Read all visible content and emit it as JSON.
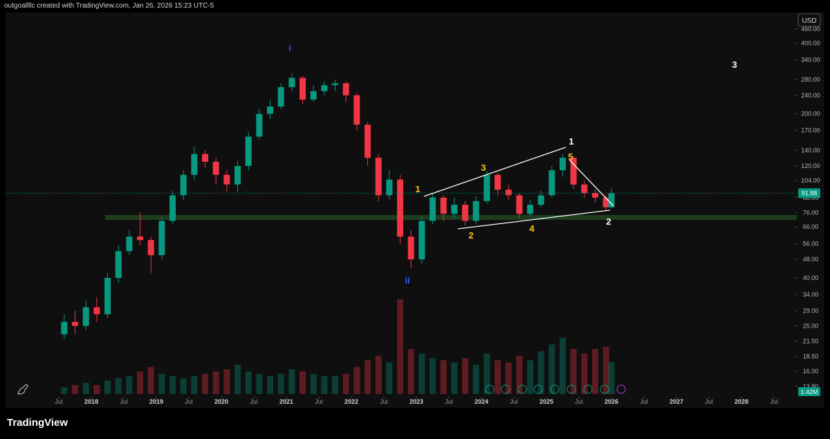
{
  "header": {
    "text": "outgoallllc created with TradingView.com, Jan 26, 2026 15:23 UTC-5"
  },
  "brand": "TradingView",
  "currency": "USD",
  "chart_data": {
    "type": "candlestick",
    "log_scale": true,
    "up_color": "#089981",
    "down_color": "#f23645",
    "x": [
      "2017-08",
      "2017-10",
      "2017-12",
      "2018-02",
      "2018-04",
      "2018-06",
      "2018-08",
      "2018-10",
      "2018-12",
      "2019-02",
      "2019-04",
      "2019-06",
      "2019-08",
      "2019-10",
      "2019-12",
      "2020-02",
      "2020-04",
      "2020-06",
      "2020-08",
      "2020-10",
      "2020-12",
      "2021-02",
      "2021-04",
      "2021-06",
      "2021-08",
      "2021-10",
      "2021-12",
      "2022-02",
      "2022-04",
      "2022-06",
      "2022-08",
      "2022-10",
      "2022-12",
      "2023-02",
      "2023-04",
      "2023-06",
      "2023-08",
      "2023-10",
      "2023-12",
      "2024-02",
      "2024-04",
      "2024-06",
      "2024-08",
      "2024-10",
      "2024-12",
      "2025-02",
      "2025-04",
      "2025-06",
      "2025-08",
      "2025-10",
      "2025-12",
      "2026-01"
    ],
    "open": [
      23,
      26,
      25,
      30,
      28,
      40,
      52,
      60,
      58,
      50,
      70,
      90,
      110,
      135,
      125,
      110,
      100,
      120,
      160,
      200,
      215,
      260,
      285,
      230,
      250,
      265,
      270,
      240,
      180,
      130,
      90,
      105,
      60,
      48,
      70,
      88,
      75,
      82,
      70,
      85,
      110,
      95,
      90,
      75,
      82,
      90,
      115,
      130,
      100,
      92,
      88,
      80
    ],
    "high": [
      28,
      29,
      32,
      33,
      42,
      55,
      64,
      76,
      60,
      73,
      94,
      115,
      145,
      140,
      130,
      115,
      126,
      168,
      210,
      230,
      270,
      298,
      290,
      265,
      275,
      280,
      275,
      245,
      185,
      135,
      115,
      110,
      64,
      73,
      92,
      90,
      88,
      85,
      89,
      114,
      112,
      100,
      92,
      86,
      94,
      120,
      135,
      132,
      104,
      95,
      90,
      96
    ],
    "low": [
      22,
      23,
      24,
      26,
      27,
      38,
      50,
      55,
      42,
      48,
      68,
      86,
      105,
      118,
      100,
      93,
      93,
      115,
      155,
      190,
      210,
      250,
      220,
      225,
      240,
      250,
      225,
      170,
      120,
      85,
      86,
      56,
      44,
      46,
      68,
      70,
      72,
      67,
      68,
      83,
      90,
      86,
      72,
      73,
      80,
      88,
      108,
      96,
      88,
      84,
      77,
      79
    ],
    "close": [
      26,
      25,
      30,
      28,
      40,
      52,
      60,
      58,
      50,
      70,
      90,
      110,
      135,
      125,
      110,
      100,
      120,
      160,
      200,
      215,
      260,
      285,
      230,
      250,
      265,
      270,
      240,
      180,
      130,
      90,
      105,
      60,
      48,
      70,
      88,
      75,
      82,
      70,
      85,
      110,
      95,
      90,
      75,
      82,
      90,
      115,
      130,
      100,
      92,
      88,
      80,
      91.88
    ],
    "volume": [
      300000,
      400000,
      500000,
      400000,
      600000,
      700000,
      800000,
      1000000,
      1200000,
      900000,
      800000,
      700000,
      800000,
      900000,
      1000000,
      1100000,
      1300000,
      1000000,
      900000,
      800000,
      900000,
      1100000,
      1000000,
      900000,
      800000,
      800000,
      900000,
      1200000,
      1500000,
      1700000,
      1400000,
      4200000,
      2000000,
      1800000,
      1600000,
      1500000,
      1400000,
      1600000,
      1300000,
      1800000,
      1500000,
      1400000,
      1700000,
      1500000,
      1900000,
      2200000,
      2500000,
      2000000,
      1800000,
      2000000,
      2100000,
      1420000
    ],
    "last_volume_label": "1.42M",
    "ylim": [
      12.8,
      541
    ],
    "yticks": [
      {
        "value": 13.8,
        "label": "13.80"
      },
      {
        "value": 16,
        "label": "16.00"
      },
      {
        "value": 18.5,
        "label": "18.50"
      },
      {
        "value": 21.5,
        "label": "21.50"
      },
      {
        "value": 25,
        "label": "25.00"
      },
      {
        "value": 29,
        "label": "29.00"
      },
      {
        "value": 34,
        "label": "34.00"
      },
      {
        "value": 40,
        "label": "40.00"
      },
      {
        "value": 48,
        "label": "48.00"
      },
      {
        "value": 56,
        "label": "56.00"
      },
      {
        "value": 66,
        "label": "66.00"
      },
      {
        "value": 76,
        "label": "76.00"
      },
      {
        "value": 88,
        "label": "88.00"
      },
      {
        "value": 104,
        "label": "104.00"
      },
      {
        "value": 120,
        "label": "120.00"
      },
      {
        "value": 140,
        "label": "140.00"
      },
      {
        "value": 170,
        "label": "170.00"
      },
      {
        "value": 200,
        "label": "200.00"
      },
      {
        "value": 240,
        "label": "240.00"
      },
      {
        "value": 280,
        "label": "280.00"
      },
      {
        "value": 340,
        "label": "340.00"
      },
      {
        "value": 400,
        "label": "400.00"
      },
      {
        "value": 460,
        "label": "460.00"
      }
    ],
    "xlim": [
      2016.68,
      2028.83
    ],
    "xticks": [
      {
        "value": 2017.5,
        "label": "Jul"
      },
      {
        "value": 2018,
        "label": "2018"
      },
      {
        "value": 2018.5,
        "label": "Jul"
      },
      {
        "value": 2019,
        "label": "2019"
      },
      {
        "value": 2019.5,
        "label": "Jul"
      },
      {
        "value": 2020,
        "label": "2020"
      },
      {
        "value": 2020.5,
        "label": "Jul"
      },
      {
        "value": 2021,
        "label": "2021"
      },
      {
        "value": 2021.5,
        "label": "Jul"
      },
      {
        "value": 2022,
        "label": "2022"
      },
      {
        "value": 2022.5,
        "label": "Jul"
      },
      {
        "value": 2023,
        "label": "2023"
      },
      {
        "value": 2023.5,
        "label": "Jul"
      },
      {
        "value": 2024,
        "label": "2024"
      },
      {
        "value": 2024.5,
        "label": "Jul"
      },
      {
        "value": 2025,
        "label": "2025"
      },
      {
        "value": 2025.5,
        "label": "Jul"
      },
      {
        "value": 2026,
        "label": "2026"
      },
      {
        "value": 2026.5,
        "label": "Jul"
      },
      {
        "value": 2027,
        "label": "2027"
      },
      {
        "value": 2027.5,
        "label": "Jul"
      },
      {
        "value": 2028,
        "label": "2028"
      },
      {
        "value": 2028.5,
        "label": "Jul"
      }
    ],
    "annotations": [
      "i",
      "ii",
      "1",
      "2",
      "3",
      "4",
      "5",
      "1",
      "2",
      "3"
    ]
  }
}
